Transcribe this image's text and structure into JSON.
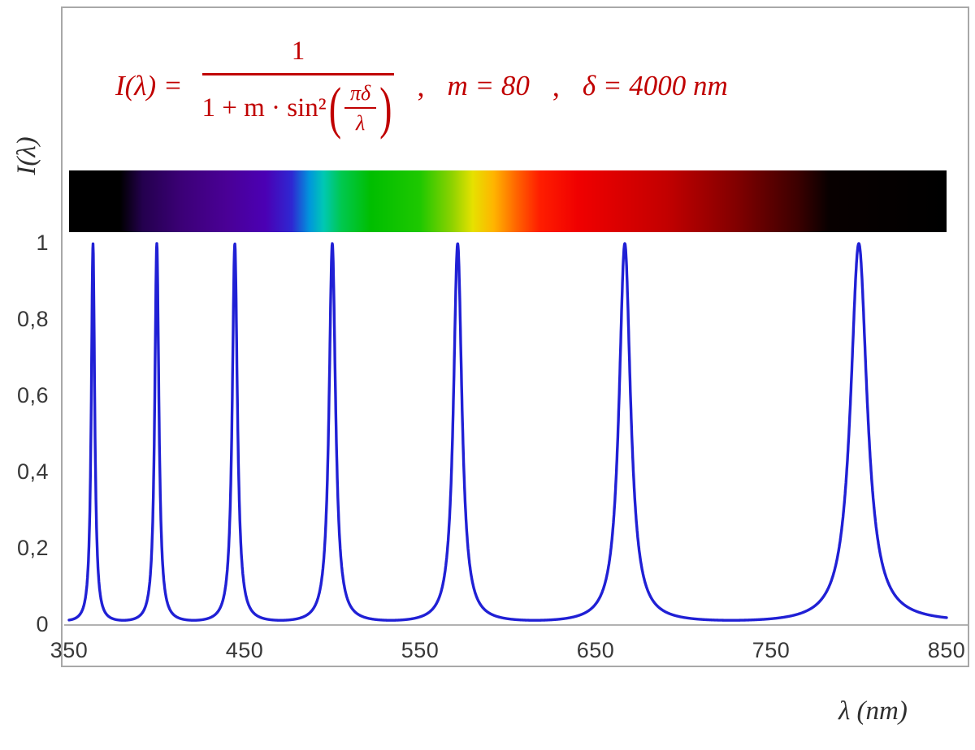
{
  "chart_data": {
    "type": "line",
    "formula": {
      "lhs": "I(λ) =",
      "numerator": "1",
      "den_prefix": "1 + m · sin²",
      "open_paren": "(",
      "inner_numerator": "πδ",
      "inner_denominator": "λ",
      "close_paren": ")",
      "comma": ",",
      "param_m": "m = 80",
      "param_delta": "δ = 4000 nm",
      "color": "#c00000"
    },
    "params": {
      "m": 80,
      "delta_nm": 4000
    },
    "x": {
      "label": "λ  (nm)",
      "range": [
        350,
        850
      ],
      "ticks": [
        "350",
        "450",
        "550",
        "650",
        "750",
        "850"
      ],
      "tick_values": [
        350,
        450,
        550,
        650,
        750,
        850
      ]
    },
    "y": {
      "label": "I(λ)",
      "range": [
        0,
        1
      ],
      "ticks_top_to_bottom": [
        "1",
        "0,8",
        "0,6",
        "0,4",
        "0,2",
        "0"
      ],
      "tick_values_top_to_bottom": [
        1,
        0.8,
        0.6,
        0.4,
        0.2,
        0
      ]
    },
    "peaks_nm": [
      363.6,
      400.0,
      444.4,
      500.0,
      571.4,
      666.7,
      800.0
    ],
    "peak_intensity": 1,
    "min_intensity_between_peaks": 0.0123,
    "curve_color": "#2020d5",
    "axis_color": "#b2b2b2",
    "frame_color": "#a8a8a8",
    "tick_color": "#383838",
    "spectrum_stops": [
      {
        "nm": 350,
        "color": "#000000"
      },
      {
        "nm": 379,
        "color": "#000000"
      },
      {
        "nm": 392,
        "color": "#24004e"
      },
      {
        "nm": 415,
        "color": "#3c0078"
      },
      {
        "nm": 440,
        "color": "#4a0096"
      },
      {
        "nm": 462,
        "color": "#4b00b4"
      },
      {
        "nm": 477,
        "color": "#2e28d2"
      },
      {
        "nm": 487,
        "color": "#0096dc"
      },
      {
        "nm": 495,
        "color": "#00c8b4"
      },
      {
        "nm": 505,
        "color": "#00c850"
      },
      {
        "nm": 522,
        "color": "#00be00"
      },
      {
        "nm": 550,
        "color": "#1ec800"
      },
      {
        "nm": 568,
        "color": "#8cd200"
      },
      {
        "nm": 580,
        "color": "#e6e100"
      },
      {
        "nm": 592,
        "color": "#ffb400"
      },
      {
        "nm": 605,
        "color": "#ff6400"
      },
      {
        "nm": 618,
        "color": "#ff1e00"
      },
      {
        "nm": 640,
        "color": "#f00000"
      },
      {
        "nm": 690,
        "color": "#c30000"
      },
      {
        "nm": 730,
        "color": "#820000"
      },
      {
        "nm": 765,
        "color": "#3c0000"
      },
      {
        "nm": 783,
        "color": "#080000"
      },
      {
        "nm": 850,
        "color": "#000000"
      }
    ]
  }
}
